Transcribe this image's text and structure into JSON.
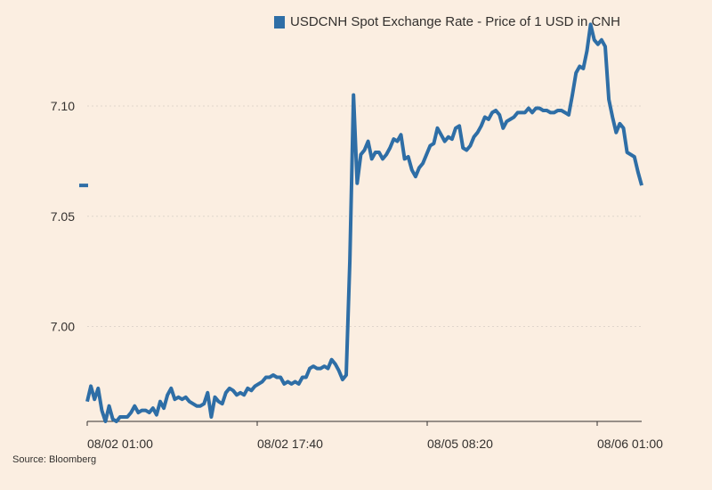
{
  "chart_data": {
    "type": "line",
    "title": "",
    "xlabel": "",
    "ylabel": "",
    "ylim": [
      6.957,
      7.14
    ],
    "y_ticks": [
      7.0,
      7.05,
      7.1
    ],
    "y_tick_labels": [
      "7.00",
      "7.05",
      "7.10"
    ],
    "x_tick_labels": [
      "08/02 01:00",
      "08/02 17:40",
      "08/05 08:20",
      "08/06 01:00"
    ],
    "grid": "horizontal dotted",
    "legend_position": "top",
    "colors": {
      "line": "#2e6ea6",
      "background": "#fbeee1",
      "grid": "#e0d6cc",
      "axis": "#33302e"
    },
    "series": [
      {
        "name": "USDCNH Spot Exchange Rate - Price of 1 USD in CNH",
        "values": [
          6.966,
          6.973,
          6.967,
          6.972,
          6.962,
          6.957,
          6.964,
          6.958,
          6.957,
          6.959,
          6.959,
          6.959,
          6.961,
          6.964,
          6.961,
          6.962,
          6.962,
          6.961,
          6.963,
          6.96,
          6.966,
          6.963,
          6.969,
          6.972,
          6.967,
          6.968,
          6.967,
          6.968,
          6.966,
          6.965,
          6.964,
          6.964,
          6.965,
          6.97,
          6.959,
          6.968,
          6.966,
          6.965,
          6.97,
          6.972,
          6.971,
          6.969,
          6.97,
          6.969,
          6.972,
          6.971,
          6.973,
          6.974,
          6.975,
          6.977,
          6.977,
          6.978,
          6.977,
          6.977,
          6.974,
          6.975,
          6.974,
          6.975,
          6.974,
          6.977,
          6.977,
          6.981,
          6.982,
          6.981,
          6.981,
          6.982,
          6.981,
          6.985,
          6.983,
          6.98,
          6.976,
          6.978,
          7.03,
          7.105,
          7.065,
          7.078,
          7.08,
          7.084,
          7.076,
          7.079,
          7.079,
          7.076,
          7.078,
          7.081,
          7.085,
          7.084,
          7.087,
          7.076,
          7.077,
          7.071,
          7.068,
          7.072,
          7.074,
          7.078,
          7.082,
          7.083,
          7.09,
          7.087,
          7.084,
          7.086,
          7.085,
          7.09,
          7.091,
          7.081,
          7.08,
          7.082,
          7.086,
          7.088,
          7.091,
          7.095,
          7.094,
          7.097,
          7.098,
          7.096,
          7.09,
          7.093,
          7.094,
          7.095,
          7.097,
          7.097,
          7.097,
          7.099,
          7.097,
          7.099,
          7.099,
          7.098,
          7.098,
          7.097,
          7.097,
          7.098,
          7.098,
          7.097,
          7.096,
          7.105,
          7.115,
          7.118,
          7.117,
          7.125,
          7.137,
          7.13,
          7.128,
          7.13,
          7.127,
          7.103,
          7.095,
          7.088,
          7.092,
          7.09,
          7.079,
          7.078,
          7.077,
          7.07,
          7.064
        ]
      }
    ],
    "annotations": [
      {
        "type": "marker",
        "y": 7.064
      }
    ]
  },
  "legend": {
    "label": "USDCNH Spot Exchange Rate - Price of 1 USD in CNH",
    "color": "#2e6ea6"
  },
  "source": "Source: Bloomberg"
}
